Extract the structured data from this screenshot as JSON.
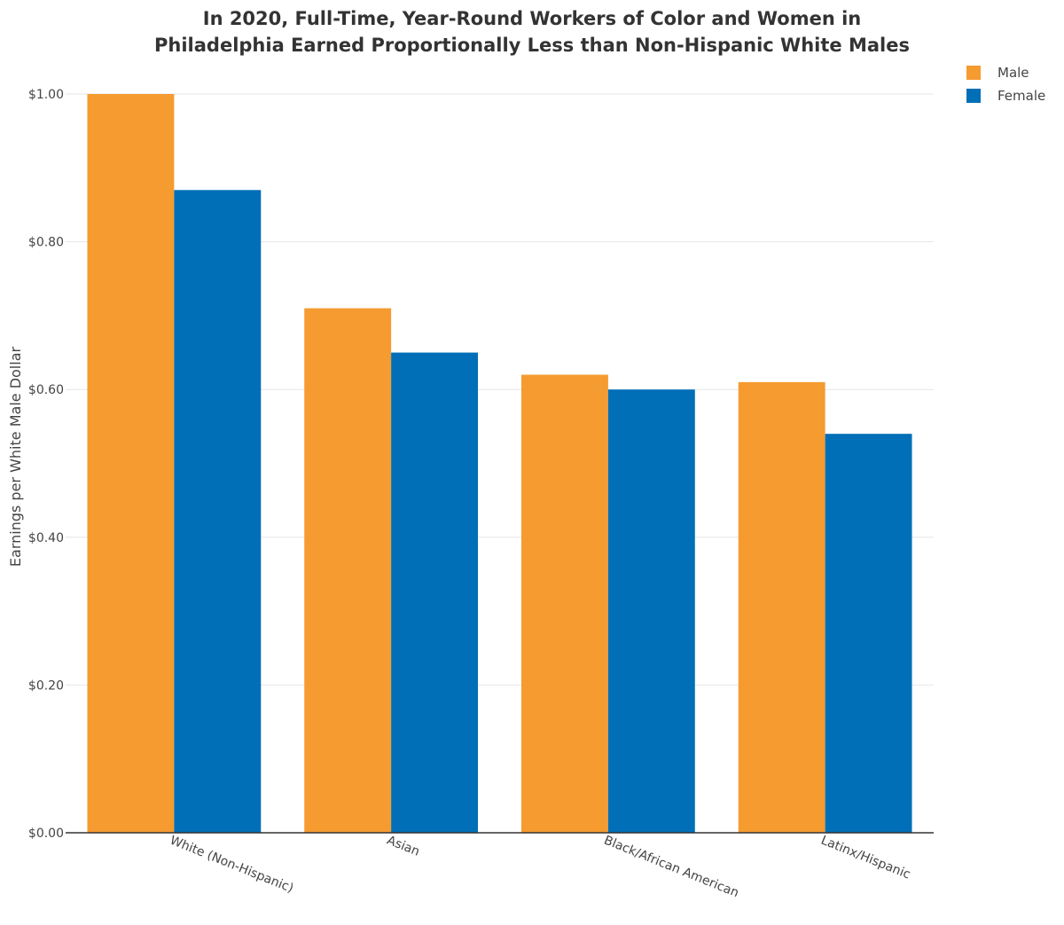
{
  "chart_data": {
    "type": "bar",
    "title_lines": [
      "In 2020, Full-Time, Year-Round Workers of Color and Women in",
      "Philadelphia Earned Proportionally Less than Non-Hispanic White Males"
    ],
    "ylabel": "Earnings per White Male Dollar",
    "xlabel": "",
    "ylim": [
      0,
      1.0
    ],
    "ytick_values": [
      0,
      0.2,
      0.4,
      0.6,
      0.8,
      1.0
    ],
    "ytick_labels": [
      "$0.00",
      "$0.20",
      "$0.40",
      "$0.60",
      "$0.80",
      "$1.00"
    ],
    "grid": true,
    "legend_position": "top-right",
    "categories": [
      "White (Non-Hispanic)",
      "Asian",
      "Black/African American",
      "Latinx/Hispanic"
    ],
    "series": [
      {
        "name": "Male",
        "color": "#f59b30",
        "values": [
          1.0,
          0.71,
          0.62,
          0.61
        ]
      },
      {
        "name": "Female",
        "color": "#006fb8",
        "values": [
          0.87,
          0.65,
          0.6,
          0.54
        ]
      }
    ]
  }
}
